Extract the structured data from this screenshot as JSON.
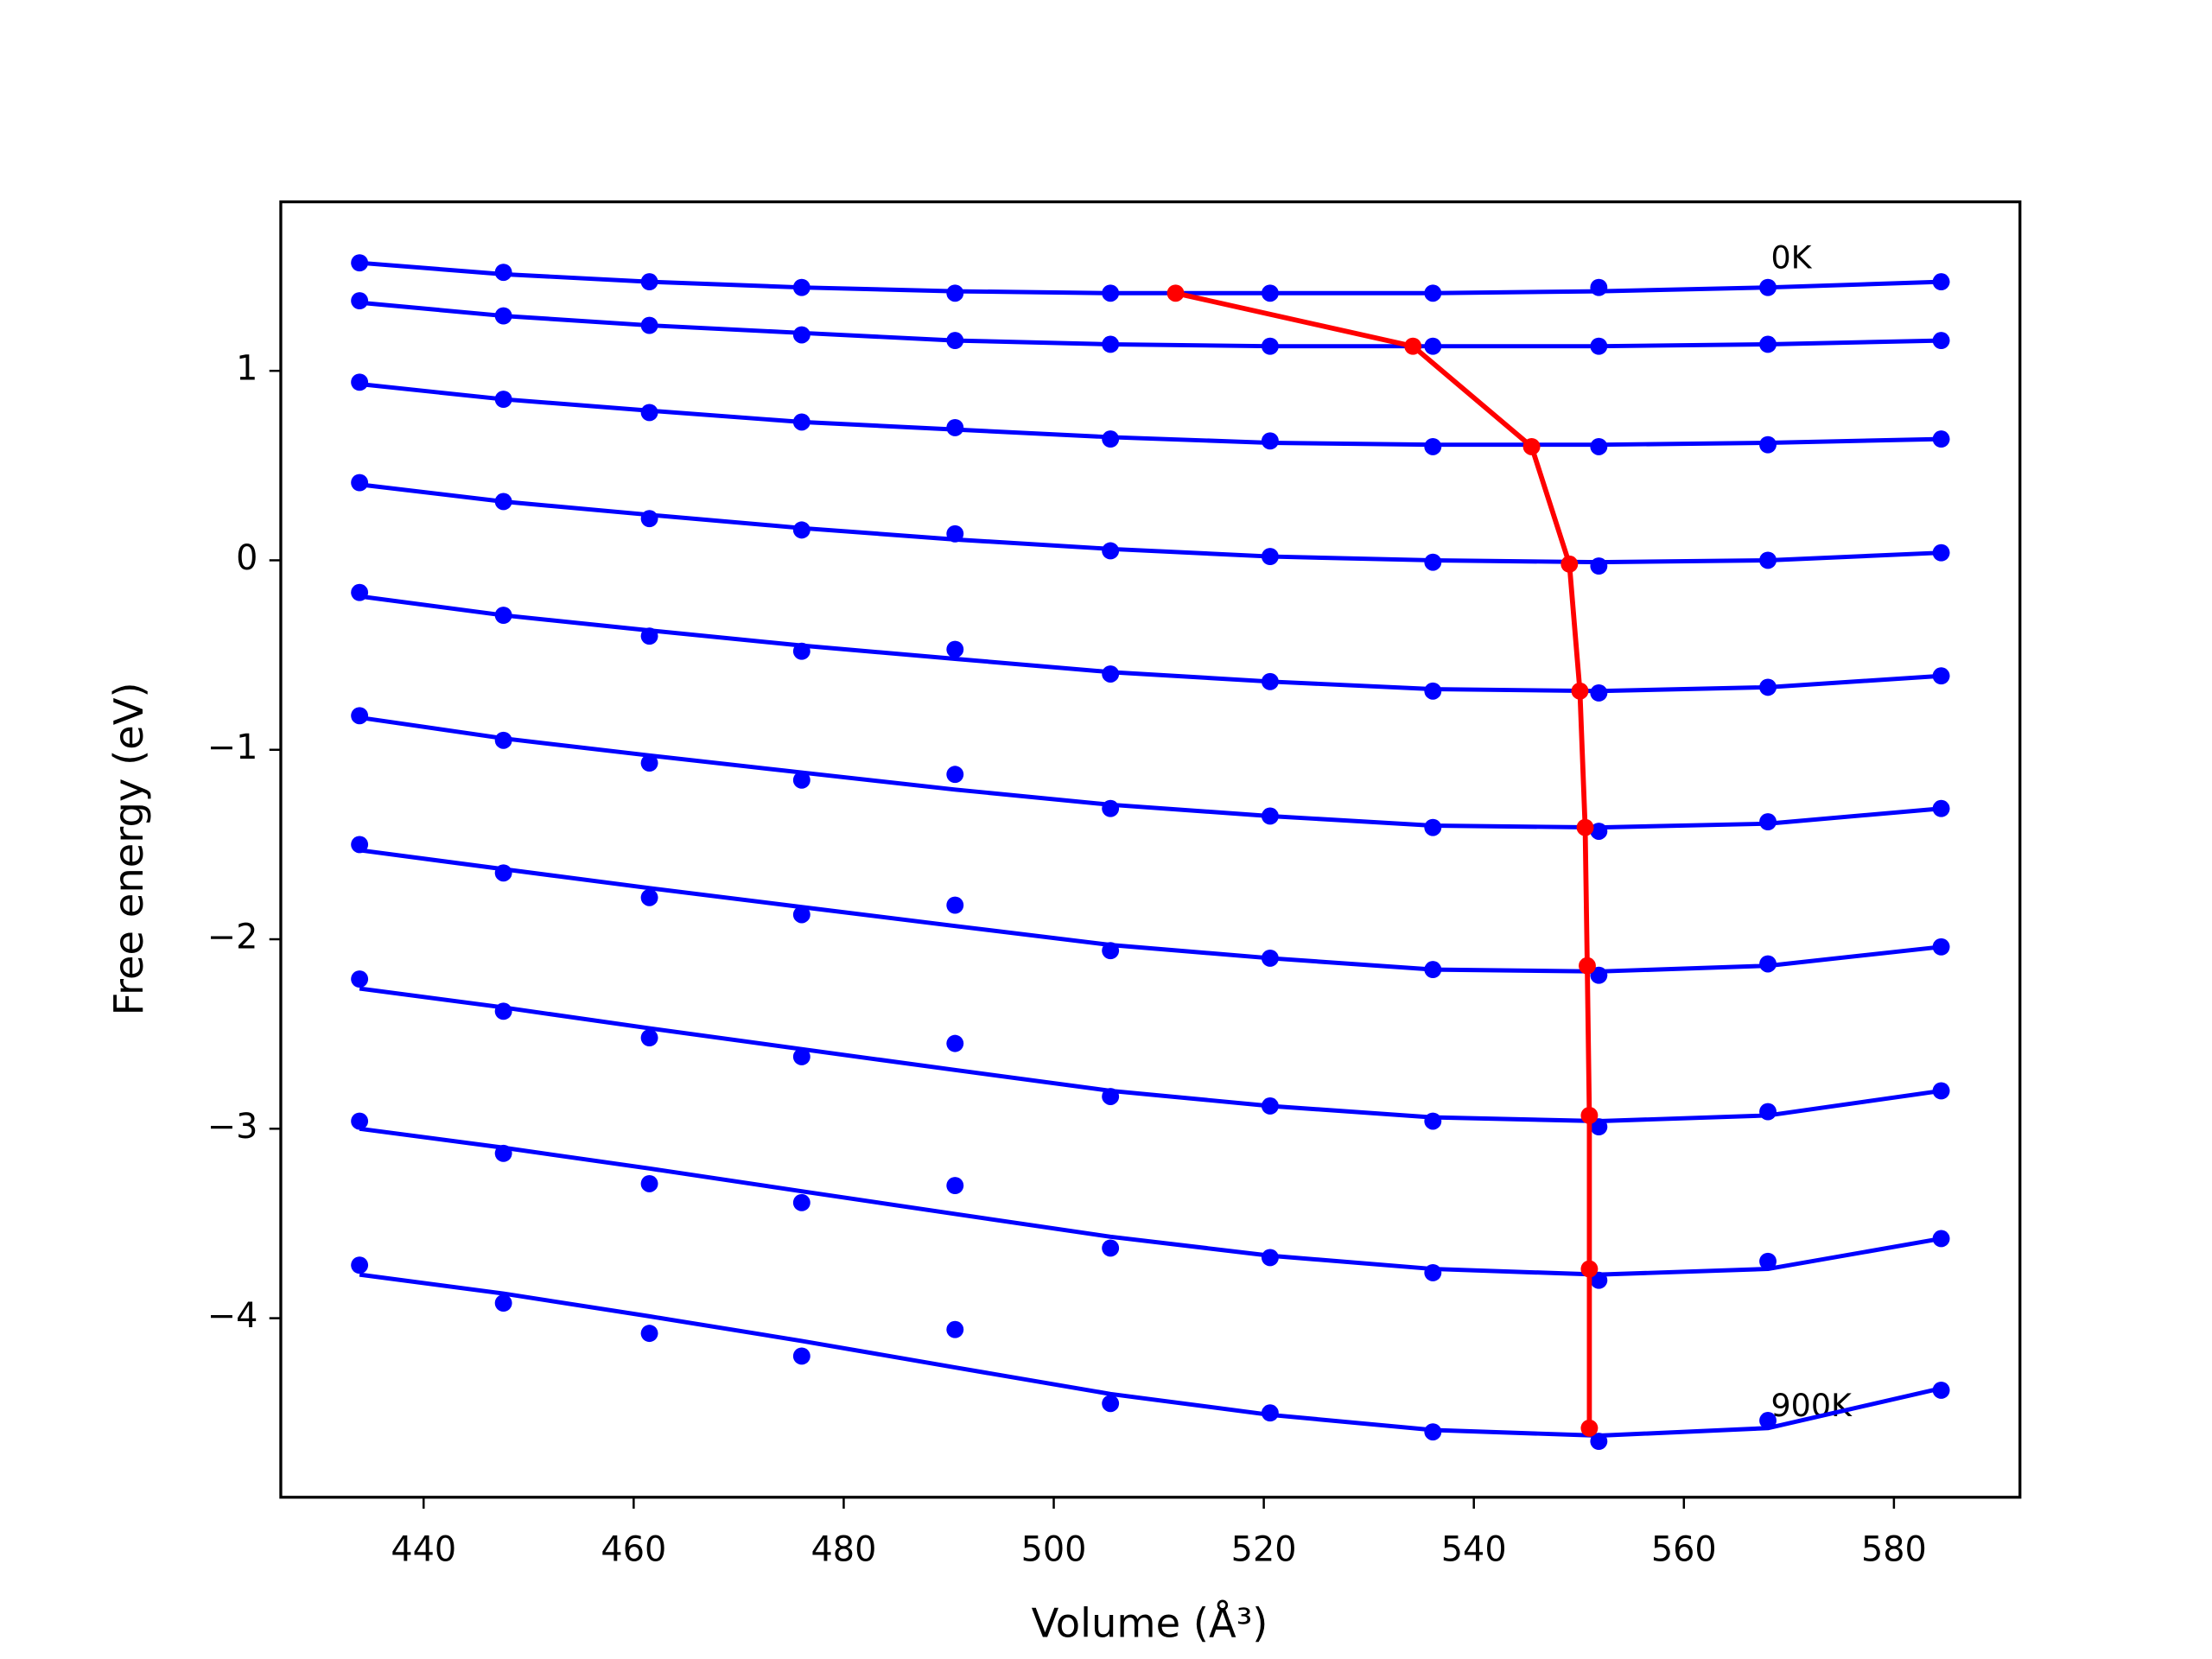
{
  "chart_data": {
    "type": "line",
    "xlabel": "Volume (Å³)",
    "ylabel": "Free energy (eV)",
    "x": [
      433.9,
      447.6,
      461.5,
      476.0,
      490.6,
      505.4,
      520.6,
      536.1,
      551.9,
      568.0,
      584.5
    ],
    "xlim": [
      426.4,
      592.0
    ],
    "xticks": [
      440,
      460,
      480,
      500,
      520,
      540,
      560,
      580
    ],
    "ylim": [
      -4.945,
      1.892
    ],
    "yticks": [
      {
        "value": -4,
        "label": "−4"
      },
      {
        "value": -3,
        "label": "−3"
      },
      {
        "value": -2,
        "label": "−2"
      },
      {
        "value": -1,
        "label": "−1"
      },
      0,
      1
    ],
    "series": [
      {
        "color": "#0000ff",
        "values": [
          1.57,
          1.52,
          1.47,
          1.44,
          1.41,
          1.41,
          1.41,
          1.41,
          1.44,
          1.44,
          1.47
        ],
        "fit": [
          1.57,
          1.51,
          1.47,
          1.44,
          1.42,
          1.41,
          1.41,
          1.41,
          1.42,
          1.44,
          1.47
        ]
      },
      {
        "color": "#0000ff",
        "values": [
          1.37,
          1.29,
          1.24,
          1.19,
          1.16,
          1.14,
          1.13,
          1.13,
          1.13,
          1.14,
          1.16
        ],
        "fit": [
          1.36,
          1.29,
          1.24,
          1.2,
          1.16,
          1.14,
          1.13,
          1.13,
          1.13,
          1.14,
          1.16
        ]
      },
      {
        "color": "#0000ff",
        "values": [
          0.94,
          0.85,
          0.78,
          0.73,
          0.7,
          0.64,
          0.63,
          0.6,
          0.6,
          0.61,
          0.64
        ],
        "fit": [
          0.93,
          0.85,
          0.79,
          0.73,
          0.69,
          0.65,
          0.62,
          0.61,
          0.61,
          0.62,
          0.64
        ]
      },
      {
        "color": "#0000ff",
        "values": [
          0.41,
          0.31,
          0.22,
          0.16,
          0.14,
          0.05,
          0.02,
          -0.01,
          -0.03,
          0.0,
          0.04
        ],
        "fit": [
          0.4,
          0.31,
          0.24,
          0.17,
          0.11,
          0.06,
          0.02,
          0.0,
          -0.01,
          0.0,
          0.04
        ]
      },
      {
        "color": "#0000ff",
        "values": [
          -0.17,
          -0.29,
          -0.4,
          -0.48,
          -0.47,
          -0.6,
          -0.64,
          -0.69,
          -0.7,
          -0.67,
          -0.61
        ],
        "fit": [
          -0.19,
          -0.29,
          -0.37,
          -0.45,
          -0.52,
          -0.59,
          -0.64,
          -0.68,
          -0.69,
          -0.67,
          -0.61
        ]
      },
      {
        "color": "#0000ff",
        "values": [
          -0.82,
          -0.95,
          -1.07,
          -1.16,
          -1.13,
          -1.31,
          -1.35,
          -1.41,
          -1.43,
          -1.38,
          -1.31
        ],
        "fit": [
          -0.83,
          -0.94,
          -1.03,
          -1.12,
          -1.21,
          -1.29,
          -1.35,
          -1.4,
          -1.41,
          -1.39,
          -1.31
        ]
      },
      {
        "color": "#0000ff",
        "values": [
          -1.5,
          -1.65,
          -1.78,
          -1.87,
          -1.82,
          -2.06,
          -2.1,
          -2.16,
          -2.19,
          -2.13,
          -2.04
        ],
        "fit": [
          -1.53,
          -1.63,
          -1.73,
          -1.83,
          -1.93,
          -2.03,
          -2.1,
          -2.16,
          -2.17,
          -2.14,
          -2.04
        ]
      },
      {
        "color": "#0000ff",
        "values": [
          -2.21,
          -2.38,
          -2.52,
          -2.62,
          -2.55,
          -2.83,
          -2.88,
          -2.96,
          -2.99,
          -2.91,
          -2.8
        ],
        "fit": [
          -2.26,
          -2.36,
          -2.47,
          -2.58,
          -2.69,
          -2.8,
          -2.88,
          -2.94,
          -2.96,
          -2.93,
          -2.8
        ]
      },
      {
        "color": "#0000ff",
        "values": [
          -2.96,
          -3.13,
          -3.29,
          -3.39,
          -3.3,
          -3.63,
          -3.68,
          -3.76,
          -3.8,
          -3.7,
          -3.58
        ],
        "fit": [
          -3.0,
          -3.1,
          -3.21,
          -3.33,
          -3.45,
          -3.57,
          -3.67,
          -3.74,
          -3.77,
          -3.74,
          -3.58
        ]
      },
      {
        "color": "#0000ff",
        "values": [
          -3.72,
          -3.92,
          -4.08,
          -4.2,
          -4.06,
          -4.45,
          -4.5,
          -4.6,
          -4.65,
          -4.54,
          -4.38
        ],
        "fit": [
          -3.77,
          -3.87,
          -3.99,
          -4.12,
          -4.26,
          -4.4,
          -4.51,
          -4.59,
          -4.62,
          -4.58,
          -4.37
        ]
      }
    ],
    "minimum_path": {
      "color": "#ff0000",
      "x": [
        511.6,
        534.2,
        545.5,
        549.1,
        550.1,
        550.6,
        550.8,
        551.0,
        551.0,
        551.0
      ],
      "values": [
        1.41,
        1.13,
        0.6,
        -0.02,
        -0.69,
        -1.41,
        -2.14,
        -2.93,
        -3.74,
        -4.58
      ]
    },
    "annotations": [
      "0K",
      "900K"
    ]
  }
}
